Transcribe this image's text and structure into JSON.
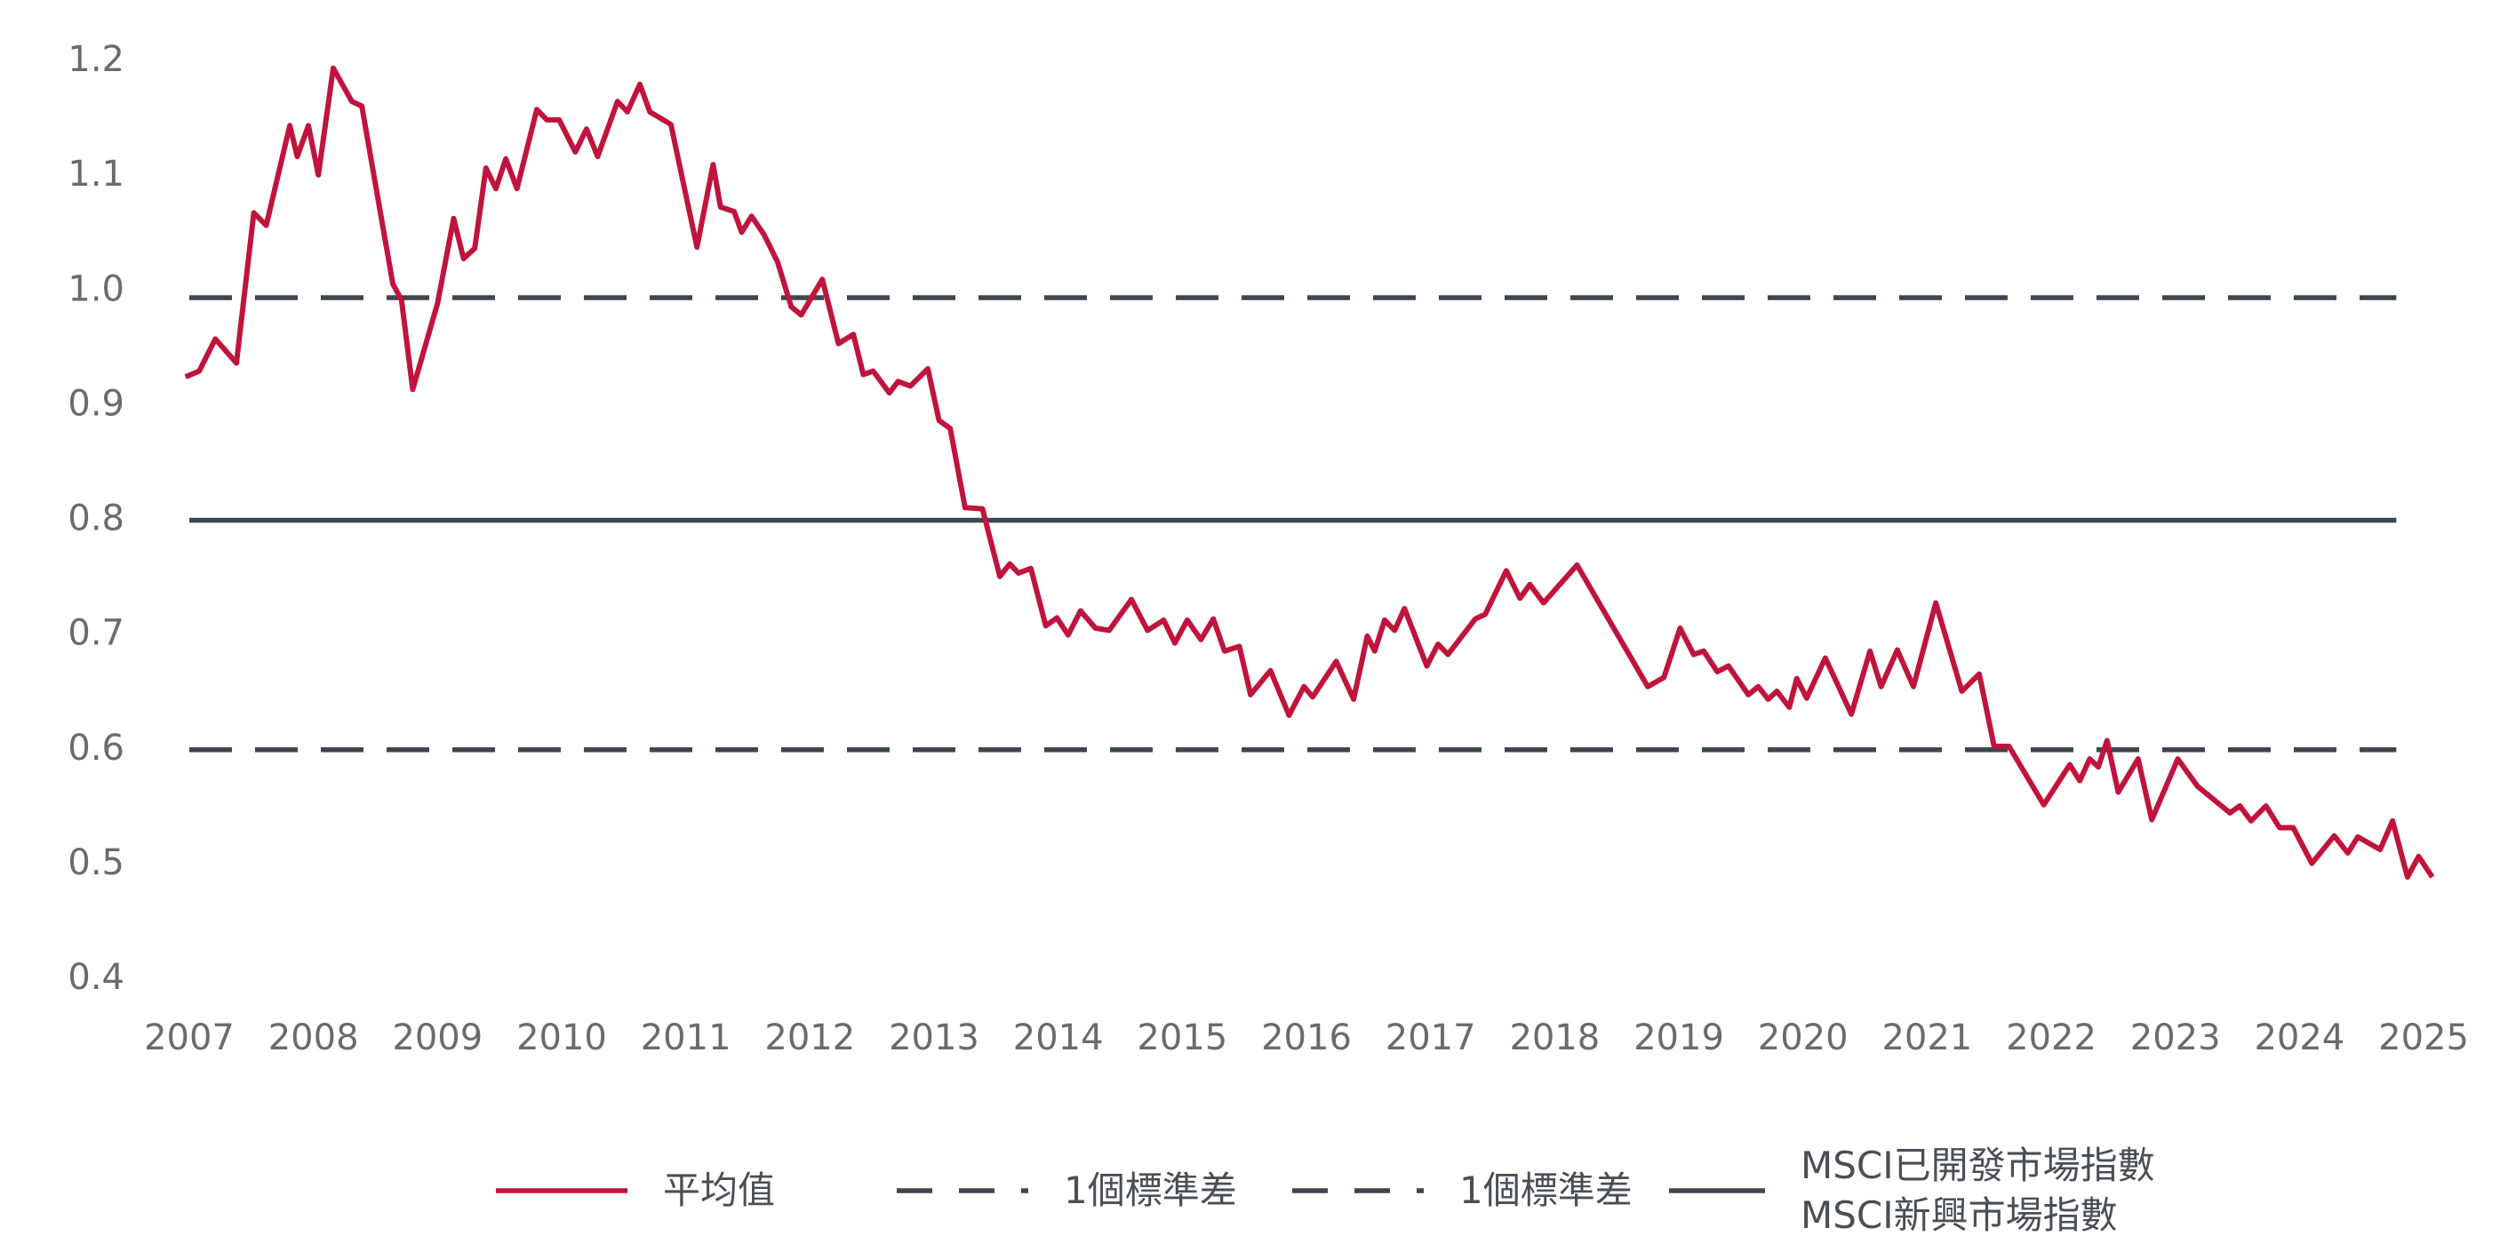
{
  "chart_data": {
    "type": "line",
    "xlim": [
      2006.9,
      2025.1
    ],
    "xticks": [
      2007,
      2008,
      2009,
      2010,
      2011,
      2012,
      2013,
      2014,
      2015,
      2016,
      2017,
      2018,
      2019,
      2020,
      2021,
      2022,
      2023,
      2024,
      2025
    ],
    "ylim": [
      0.4,
      1.2
    ],
    "yticks": [
      0.4,
      0.5,
      0.6,
      0.7,
      0.8,
      0.9,
      {
        "value": 1,
        "label": "1.0"
      },
      1.1,
      1.2
    ],
    "grid": false,
    "legend": "bottom",
    "series": [
      {
        "name": "平均值",
        "color": "#c0143c",
        "style": "solid",
        "x": [
          2006.97,
          2007.08,
          2007.21,
          2007.38,
          2007.52,
          2007.62,
          2007.81,
          2007.87,
          2007.96,
          2008.04,
          2008.16,
          2008.31,
          2008.39,
          2008.64,
          2008.71,
          2008.8,
          2009.0,
          2009.13,
          2009.21,
          2009.3,
          2009.39,
          2009.47,
          2009.55,
          2009.64,
          2009.8,
          2009.88,
          2009.98,
          2010.11,
          2010.2,
          2010.29,
          2010.45,
          2010.53,
          2010.63,
          2010.71,
          2010.88,
          2011.09,
          2011.22,
          2011.28,
          2011.39,
          2011.45,
          2011.53,
          2011.63,
          2011.74,
          2011.85,
          2011.93,
          2012.1,
          2012.23,
          2012.35,
          2012.43,
          2012.51,
          2012.64,
          2012.71,
          2012.81,
          2012.95,
          2013.04,
          2013.13,
          2013.25,
          2013.39,
          2013.53,
          2013.61,
          2013.68,
          2013.78,
          2013.9,
          2013.99,
          2014.08,
          2014.18,
          2014.3,
          2014.41,
          2014.59,
          2014.72,
          2014.85,
          2014.94,
          2015.04,
          2015.15,
          2015.25,
          2015.34,
          2015.46,
          2015.55,
          2015.71,
          2015.86,
          2015.98,
          2016.05,
          2016.24,
          2016.38,
          2016.49,
          2016.55,
          2016.63,
          2016.71,
          2016.79,
          2016.97,
          2017.06,
          2017.14,
          2017.36,
          2017.44,
          2017.61,
          2017.72,
          2017.8,
          2017.91,
          2018.18,
          2018.75,
          2018.88,
          2019.01,
          2019.12,
          2019.2,
          2019.31,
          2019.4,
          2019.56,
          2019.64,
          2019.72,
          2019.79,
          2019.89,
          2019.95,
          2020.03,
          2020.18,
          2020.39,
          2020.54,
          2020.63,
          2020.76,
          2020.89,
          2021.07,
          2021.28,
          2021.42,
          2021.54,
          2021.66,
          2021.94,
          2022.15,
          2022.23,
          2022.31,
          2022.38,
          2022.45,
          2022.54,
          2022.7,
          2022.81,
          2023.02,
          2023.18,
          2023.44,
          2023.52,
          2023.61,
          2023.73,
          2023.84,
          2023.95,
          2024.1,
          2024.28,
          2024.39,
          2024.47,
          2024.65,
          2024.75,
          2024.87,
          2024.96,
          2025.07
        ],
        "values": [
          0.925,
          0.93,
          0.958,
          0.937,
          1.068,
          1.057,
          1.144,
          1.117,
          1.144,
          1.101,
          1.194,
          1.165,
          1.161,
          1.006,
          0.992,
          0.914,
          0.989,
          1.063,
          1.028,
          1.037,
          1.107,
          1.089,
          1.115,
          1.089,
          1.158,
          1.149,
          1.149,
          1.121,
          1.141,
          1.117,
          1.165,
          1.156,
          1.18,
          1.156,
          1.145,
          1.038,
          1.11,
          1.073,
          1.069,
          1.051,
          1.065,
          1.049,
          1.025,
          0.986,
          0.979,
          1.01,
          0.954,
          0.962,
          0.927,
          0.93,
          0.911,
          0.921,
          0.917,
          0.932,
          0.887,
          0.88,
          0.811,
          0.81,
          0.751,
          0.762,
          0.754,
          0.758,
          0.708,
          0.715,
          0.7,
          0.721,
          0.706,
          0.704,
          0.731,
          0.704,
          0.713,
          0.693,
          0.713,
          0.696,
          0.714,
          0.686,
          0.69,
          0.648,
          0.669,
          0.63,
          0.655,
          0.646,
          0.677,
          0.644,
          0.699,
          0.686,
          0.713,
          0.704,
          0.723,
          0.673,
          0.692,
          0.683,
          0.714,
          0.718,
          0.756,
          0.732,
          0.744,
          0.728,
          0.761,
          0.655,
          0.663,
          0.706,
          0.683,
          0.686,
          0.668,
          0.673,
          0.648,
          0.655,
          0.644,
          0.651,
          0.637,
          0.662,
          0.645,
          0.68,
          0.631,
          0.686,
          0.655,
          0.687,
          0.655,
          0.728,
          0.651,
          0.666,
          0.603,
          0.603,
          0.552,
          0.587,
          0.573,
          0.592,
          0.585,
          0.608,
          0.563,
          0.592,
          0.539,
          0.592,
          0.568,
          0.545,
          0.551,
          0.538,
          0.551,
          0.532,
          0.532,
          0.501,
          0.525,
          0.51,
          0.524,
          0.513,
          0.538,
          0.489,
          0.507,
          0.489
        ]
      },
      {
        "name": "1個標準差",
        "color": "#3d4650",
        "style": "dashed",
        "x": [
          2007,
          2024.78
        ],
        "values": [
          0.994,
          0.994
        ]
      },
      {
        "name": "1個標準差",
        "color": "#3d4650",
        "style": "dashed",
        "x": [
          2007,
          2024.78
        ],
        "values": [
          0.6,
          0.6
        ]
      },
      {
        "name": "MSCI已開發市場指數\nMSCI新興市場指數",
        "color": "#3d4650",
        "style": "solid",
        "x": [
          2007,
          2024.78
        ],
        "values": [
          0.8,
          0.8
        ]
      }
    ]
  }
}
